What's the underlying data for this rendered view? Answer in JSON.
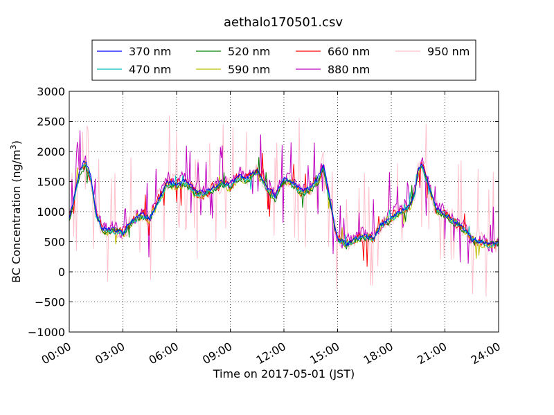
{
  "chart_data": {
    "type": "line",
    "title": "aethalo170501.csv",
    "xlabel": "Time on 2017-05-01 (JST)",
    "ylabel_main": "BC Concentration (ng/m",
    "ylabel_sup": "3",
    "ylabel_close": ")",
    "xlim": [
      0,
      24
    ],
    "ylim": [
      -1000,
      3000
    ],
    "xticks": [
      0,
      3,
      6,
      9,
      12,
      15,
      18,
      21,
      24
    ],
    "xtick_labels": [
      "00:00",
      "03:00",
      "06:00",
      "09:00",
      "12:00",
      "15:00",
      "18:00",
      "21:00",
      "24:00"
    ],
    "yticks": [
      -1000,
      -500,
      0,
      500,
      1000,
      1500,
      2000,
      2500,
      3000
    ],
    "ytick_labels": [
      "−1000",
      "−500",
      "0",
      "500",
      "1000",
      "1500",
      "2000",
      "2500",
      "3000"
    ],
    "grid": true,
    "legend_position": "top (above plot area)",
    "base_profile": {
      "x": [
        0,
        0.3,
        0.6,
        0.9,
        1.2,
        1.5,
        1.8,
        2.1,
        2.5,
        3.0,
        3.5,
        4.0,
        4.5,
        5.0,
        5.5,
        6.0,
        6.5,
        7.0,
        7.5,
        8.0,
        8.5,
        9.0,
        9.5,
        10.0,
        10.5,
        11.0,
        11.5,
        12.0,
        12.5,
        13.0,
        13.5,
        14.0,
        14.2,
        14.5,
        15.0,
        15.5,
        16.0,
        16.5,
        17.0,
        17.5,
        18.0,
        18.5,
        19.0,
        19.3,
        19.5,
        19.7,
        20.0,
        20.5,
        21.0,
        21.5,
        22.0,
        22.5,
        23.0,
        23.5,
        24.0
      ],
      "y": [
        900,
        1300,
        1700,
        1850,
        1600,
        1000,
        750,
        700,
        700,
        650,
        850,
        950,
        900,
        1200,
        1500,
        1450,
        1500,
        1350,
        1300,
        1400,
        1500,
        1450,
        1600,
        1550,
        1700,
        1450,
        1250,
        1550,
        1500,
        1350,
        1400,
        1600,
        1800,
        1300,
        550,
        450,
        550,
        600,
        550,
        800,
        900,
        1000,
        1100,
        1300,
        1700,
        1800,
        1550,
        1050,
        950,
        850,
        750,
        550,
        500,
        450,
        500
      ]
    },
    "series": [
      {
        "name": "370 nm",
        "color": "#0000ff",
        "gain": 1.0,
        "noise": 60,
        "spike_rate": 0.0,
        "spike_amp": 0,
        "seed": 11
      },
      {
        "name": "470 nm",
        "color": "#00bfbf",
        "gain": 0.98,
        "noise": 70,
        "spike_rate": 0.01,
        "spike_amp": 200,
        "seed": 23
      },
      {
        "name": "520 nm",
        "color": "#008000",
        "gain": 0.97,
        "noise": 90,
        "spike_rate": 0.02,
        "spike_amp": 300,
        "seed": 37
      },
      {
        "name": "590 nm",
        "color": "#bfbf00",
        "gain": 0.97,
        "noise": 100,
        "spike_rate": 0.02,
        "spike_amp": 300,
        "seed": 41
      },
      {
        "name": "660 nm",
        "color": "#ff0000",
        "gain": 0.99,
        "noise": 130,
        "spike_rate": 0.04,
        "spike_amp": 450,
        "seed": 53
      },
      {
        "name": "880 nm",
        "color": "#bf00bf",
        "gain": 1.03,
        "noise": 180,
        "spike_rate": 0.08,
        "spike_amp": 700,
        "seed": 67
      },
      {
        "name": "950 nm",
        "color": "#ffc0cb",
        "gain": 1.0,
        "noise": 240,
        "spike_rate": 0.14,
        "spike_amp": 1100,
        "seed": 79
      }
    ]
  }
}
